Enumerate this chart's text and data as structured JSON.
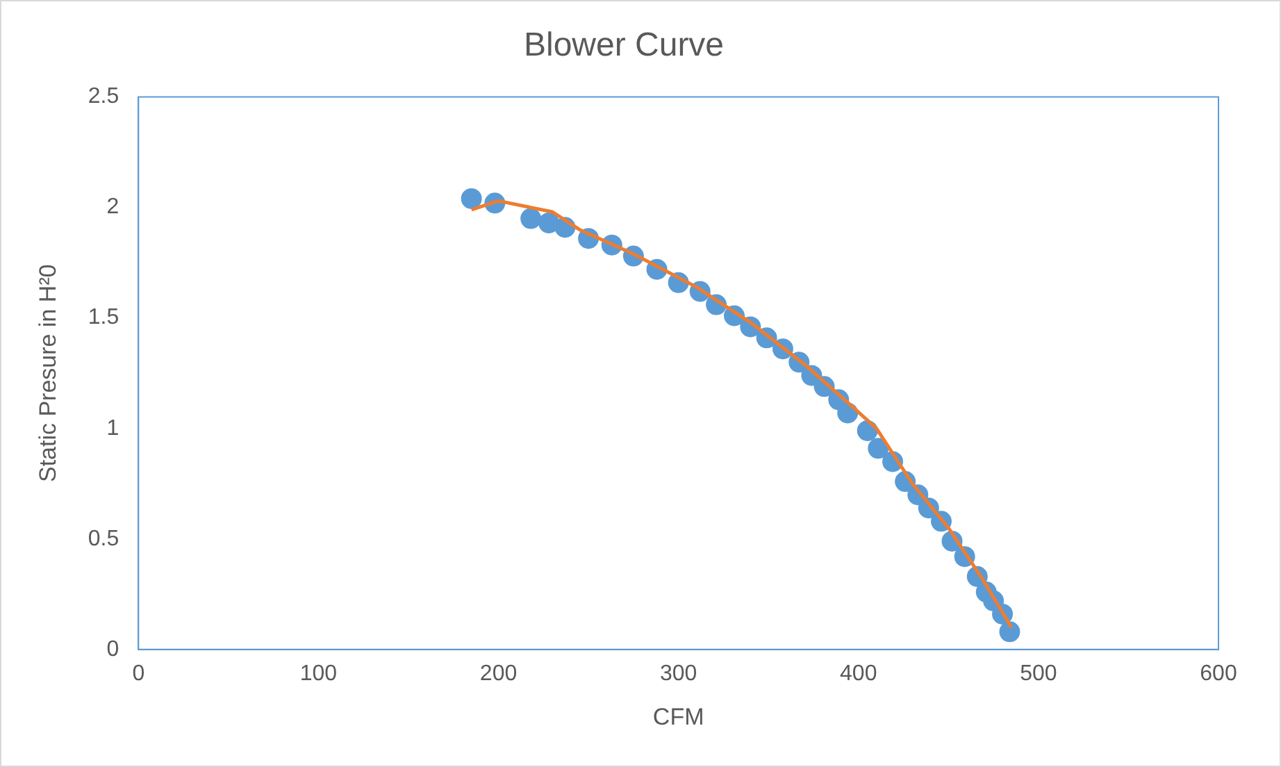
{
  "chart_data": {
    "type": "scatter",
    "title": "Blower Curve",
    "xlabel": "CFM",
    "ylabel": "Static Presure in H²0",
    "xlim": [
      0,
      600
    ],
    "xticks": [
      0,
      100,
      200,
      300,
      400,
      500,
      600
    ],
    "ylim": [
      0,
      2.5
    ],
    "yticks": [
      0,
      0.5,
      1,
      1.5,
      2,
      2.5
    ],
    "grid": false,
    "legend": false,
    "marker": "circle",
    "series": [
      {
        "color": "#5b9bd5",
        "x": [
          185,
          198,
          218,
          228,
          237,
          250,
          263,
          275,
          288,
          300,
          312,
          321,
          331,
          340,
          349,
          358,
          367,
          374,
          381,
          389,
          394,
          405,
          411,
          419,
          426,
          433,
          439,
          446,
          452,
          459,
          466,
          471,
          475,
          480,
          484
        ],
        "values": [
          2.04,
          2.02,
          1.95,
          1.93,
          1.91,
          1.86,
          1.83,
          1.78,
          1.72,
          1.66,
          1.62,
          1.56,
          1.51,
          1.46,
          1.41,
          1.36,
          1.3,
          1.24,
          1.19,
          1.13,
          1.07,
          0.99,
          0.91,
          0.85,
          0.76,
          0.7,
          0.64,
          0.58,
          0.49,
          0.42,
          0.33,
          0.26,
          0.22,
          0.16,
          0.08
        ]
      },
      {
        "type": "line",
        "color": "#ed7d31",
        "marker": "none",
        "line_style": "solid",
        "x": [
          185,
          200,
          230,
          245,
          275,
          310,
          340,
          370,
          395,
          410,
          430,
          450,
          468,
          485
        ],
        "values": [
          1.99,
          2.03,
          1.98,
          1.9,
          1.79,
          1.64,
          1.48,
          1.29,
          1.11,
          1.0,
          0.75,
          0.55,
          0.33,
          0.1
        ]
      }
    ]
  }
}
